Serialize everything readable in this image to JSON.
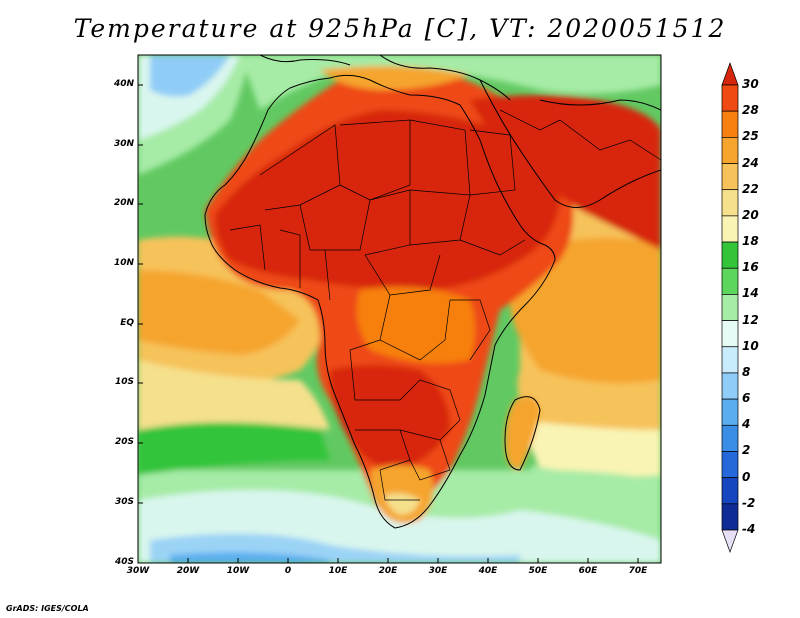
{
  "title": "Temperature at 925hPa [C], VT: 2020051512",
  "credit": "GrADS: IGES/COLA",
  "map": {
    "lat_range": [
      -40,
      45
    ],
    "lon_range": [
      -30,
      75
    ],
    "lat_labels": [
      "40N",
      "30N",
      "20N",
      "10N",
      "EQ",
      "10S",
      "20S",
      "30S",
      "40S"
    ],
    "lon_labels": [
      "30W",
      "20W",
      "10W",
      "0",
      "10E",
      "20E",
      "30E",
      "40E",
      "50E",
      "60E",
      "70E"
    ]
  },
  "colorbar": {
    "labels": [
      "30",
      "28",
      "25",
      "24",
      "22",
      "20",
      "18",
      "16",
      "14",
      "12",
      "10",
      "8",
      "6",
      "4",
      "2",
      "0",
      "-2",
      "-4"
    ],
    "colors": [
      "#d7260e",
      "#ee4a12",
      "#f7800f",
      "#f5a52d",
      "#f6c25a",
      "#f5e08c",
      "#f9f4b4",
      "#33c43a",
      "#5cd65c",
      "#a6eba6",
      "#e6fbf5",
      "#c8ecfb",
      "#8fccf7",
      "#5aaef0",
      "#3b8ee6",
      "#2468d9",
      "#1546bf",
      "#0f2c96",
      "#0b1c6e"
    ]
  }
}
